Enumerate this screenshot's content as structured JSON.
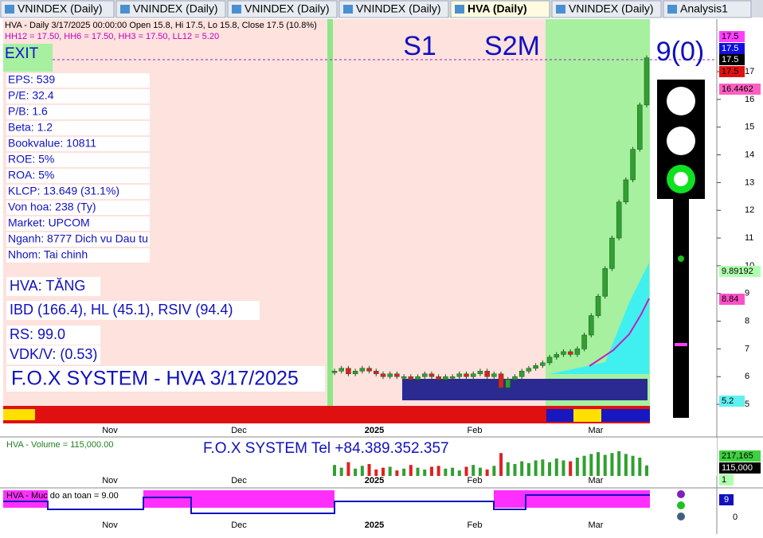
{
  "tabs": [
    "VNINDEX (Daily)",
    "VNINDEX (Daily)",
    "VNINDEX (Daily)",
    "VNINDEX (Daily)",
    "HVA (Daily)",
    "VNINDEX (Daily)",
    "Analysis1"
  ],
  "header": {
    "line1": "HVA - Daily 3/17/2025 00:00:00 Open 15.8, Hi 17.5, Lo 15.8, Close 17.5 (10.8%)",
    "line2": "HH12 = 17.50, HH6 = 17.50, HH3 = 17.50, LL12 = 5.20"
  },
  "labels": {
    "exit": "EXIT",
    "s1": "S1",
    "s2m": "S2M",
    "signal": "9(0)",
    "watermark": "F.O.X SYSTEM - HVA 3/17/2025"
  },
  "info": [
    "EPS: 539",
    "P/E: 32.4",
    "P/B: 1.6",
    "Beta: 1.2",
    "Bookvalue: 10811",
    "ROE: 5%",
    "ROA: 5%",
    "KLCP: 13.649 (31.1%)",
    "Von hoa: 238 (Ty)",
    "Market: UPCOM",
    "Nganh: 8777 Dich vu Dau tu",
    "Nhom: Tai chinh"
  ],
  "summary": [
    "HVA: TĂNG",
    "IBD (166.4), HL (45.1), RSIV (94.4)",
    "RS: 99.0",
    "VDK/V:  (0.53)"
  ],
  "price_chart": {
    "ylim": [
      4.6,
      18.2
    ],
    "yticks": [
      5,
      6,
      7,
      8,
      9,
      10,
      11,
      12,
      13,
      14,
      15,
      16,
      17
    ],
    "closes": [
      6.2,
      6.3,
      6.1,
      6.2,
      6.3,
      6.2,
      6.1,
      6.0,
      6.1,
      6.0,
      6.0,
      5.9,
      6.0,
      6.1,
      6.0,
      5.9,
      6.0,
      6.0,
      6.1,
      6.0,
      6.1,
      6.2,
      6.0,
      6.1,
      5.6,
      5.9,
      6.0,
      6.2,
      6.3,
      6.4,
      6.5,
      6.7,
      6.8,
      6.9,
      6.8,
      7.0,
      7.5,
      8.2,
      8.9,
      9.9,
      11.0,
      12.3,
      13.1,
      14.2,
      15.8,
      17.5
    ],
    "badges": [
      {
        "value": 17.5,
        "color": "#ff40ff"
      },
      {
        "value": 17.5,
        "color": "#1010e0"
      },
      {
        "value": 17.5,
        "color": "#000000"
      },
      {
        "value": 17.5,
        "color": "#e01010"
      },
      {
        "value": 16.4462,
        "color": "#ff60c0"
      },
      {
        "value": 9.89192,
        "color": "#b0ffb0"
      },
      {
        "value": 8.84,
        "color": "#ff50c8"
      },
      {
        "value": 5.2,
        "color": "#60f0f0"
      }
    ]
  },
  "dates": [
    "Nov",
    "Dec",
    "2025",
    "Feb",
    "Mar"
  ],
  "volume": {
    "title": "HVA - Volume = 115,000.00",
    "tel": "F.O.X SYSTEM Tel +84.389.352.357",
    "ylim": [
      0,
      400000
    ],
    "values": [
      120000,
      90000,
      150000,
      80000,
      110000,
      130000,
      70000,
      90000,
      100000,
      60000,
      80000,
      120000,
      90000,
      70000,
      100000,
      110000,
      80000,
      90000,
      60000,
      100000,
      120000,
      90000,
      70000,
      110000,
      250000,
      150000,
      130000,
      160000,
      140000,
      170000,
      180000,
      150000,
      190000,
      170000,
      160000,
      200000,
      220000,
      240000,
      260000,
      230000,
      250000,
      270000,
      240000,
      220000,
      200000,
      115000
    ],
    "badges": [
      {
        "value": 217165,
        "label": "217,165",
        "color": "#40d040"
      },
      {
        "value": 115000,
        "label": "115,000",
        "color": "#000000"
      },
      {
        "value": 1,
        "color": "#b0ffb0"
      }
    ]
  },
  "safety": {
    "title": "HVA - Muc do an toan = 9.00",
    "badge": 9,
    "axis": 0
  }
}
